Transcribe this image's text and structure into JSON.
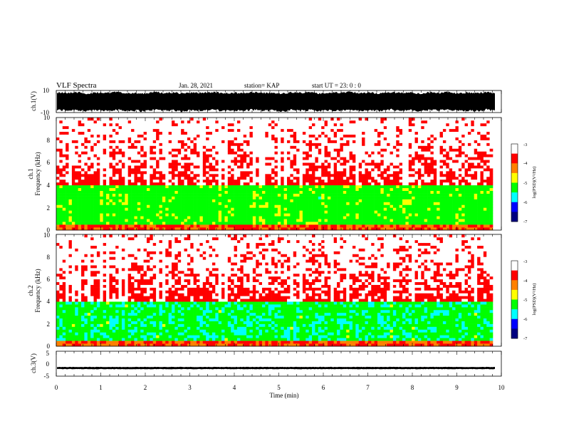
{
  "header": {
    "title": "VLF Spectra",
    "date": "Jan. 28, 2021",
    "station": "station= KAP",
    "start": "start UT =  23: 0  : 0"
  },
  "chart_data": {
    "type": "heatmap",
    "x": {
      "label": "Time (min)",
      "range": [
        0,
        10
      ],
      "ticks": [
        "0",
        "1",
        "2",
        "3",
        "4",
        "5",
        "6",
        "7",
        "8",
        "9",
        "10"
      ]
    },
    "panels": [
      {
        "kind": "waveform",
        "ylabel": "ch.1(V)",
        "yrange": [
          -10,
          10
        ],
        "ticks": [
          "10",
          "-10"
        ],
        "envelope": [
          -9,
          9
        ]
      },
      {
        "kind": "spectrogram",
        "ylabel": "Frequency (kHz)",
        "channel_label": "ch.1",
        "yrange": [
          0,
          10
        ],
        "ticks": [
          "0",
          "2",
          "4",
          "6",
          "8",
          "10"
        ],
        "colorbar": {
          "label": "log(PSD)(V²/Hz)",
          "range": [
            -7,
            -3
          ],
          "ticks": [
            "-3",
            "-4",
            "-5",
            "-6",
            "-7"
          ],
          "colors": [
            "#000080",
            "#0000ff",
            "#00ffff",
            "#00ff00",
            "#ffff00",
            "#ff8000",
            "#ff0000",
            "#ffffff"
          ]
        }
      },
      {
        "kind": "spectrogram",
        "ylabel": "Frequency (kHz)",
        "channel_label": "ch.2",
        "yrange": [
          0,
          10
        ],
        "ticks": [
          "0",
          "2",
          "4",
          "6",
          "8",
          "10"
        ],
        "colorbar": {
          "label": "log(PSD)(V²/Hz)",
          "range": [
            -7,
            -3
          ],
          "ticks": [
            "-3",
            "-4",
            "-5",
            "-6",
            "-7"
          ],
          "colors": [
            "#000080",
            "#0000ff",
            "#00ffff",
            "#00ff00",
            "#ffff00",
            "#ff8000",
            "#ff0000",
            "#ffffff"
          ]
        }
      },
      {
        "kind": "waveform",
        "ylabel": "ch.3(V)",
        "yrange": [
          -5,
          5
        ],
        "ticks": [
          "5",
          "0",
          "-5"
        ],
        "envelope": [
          -2.1,
          -1.4
        ]
      }
    ]
  }
}
